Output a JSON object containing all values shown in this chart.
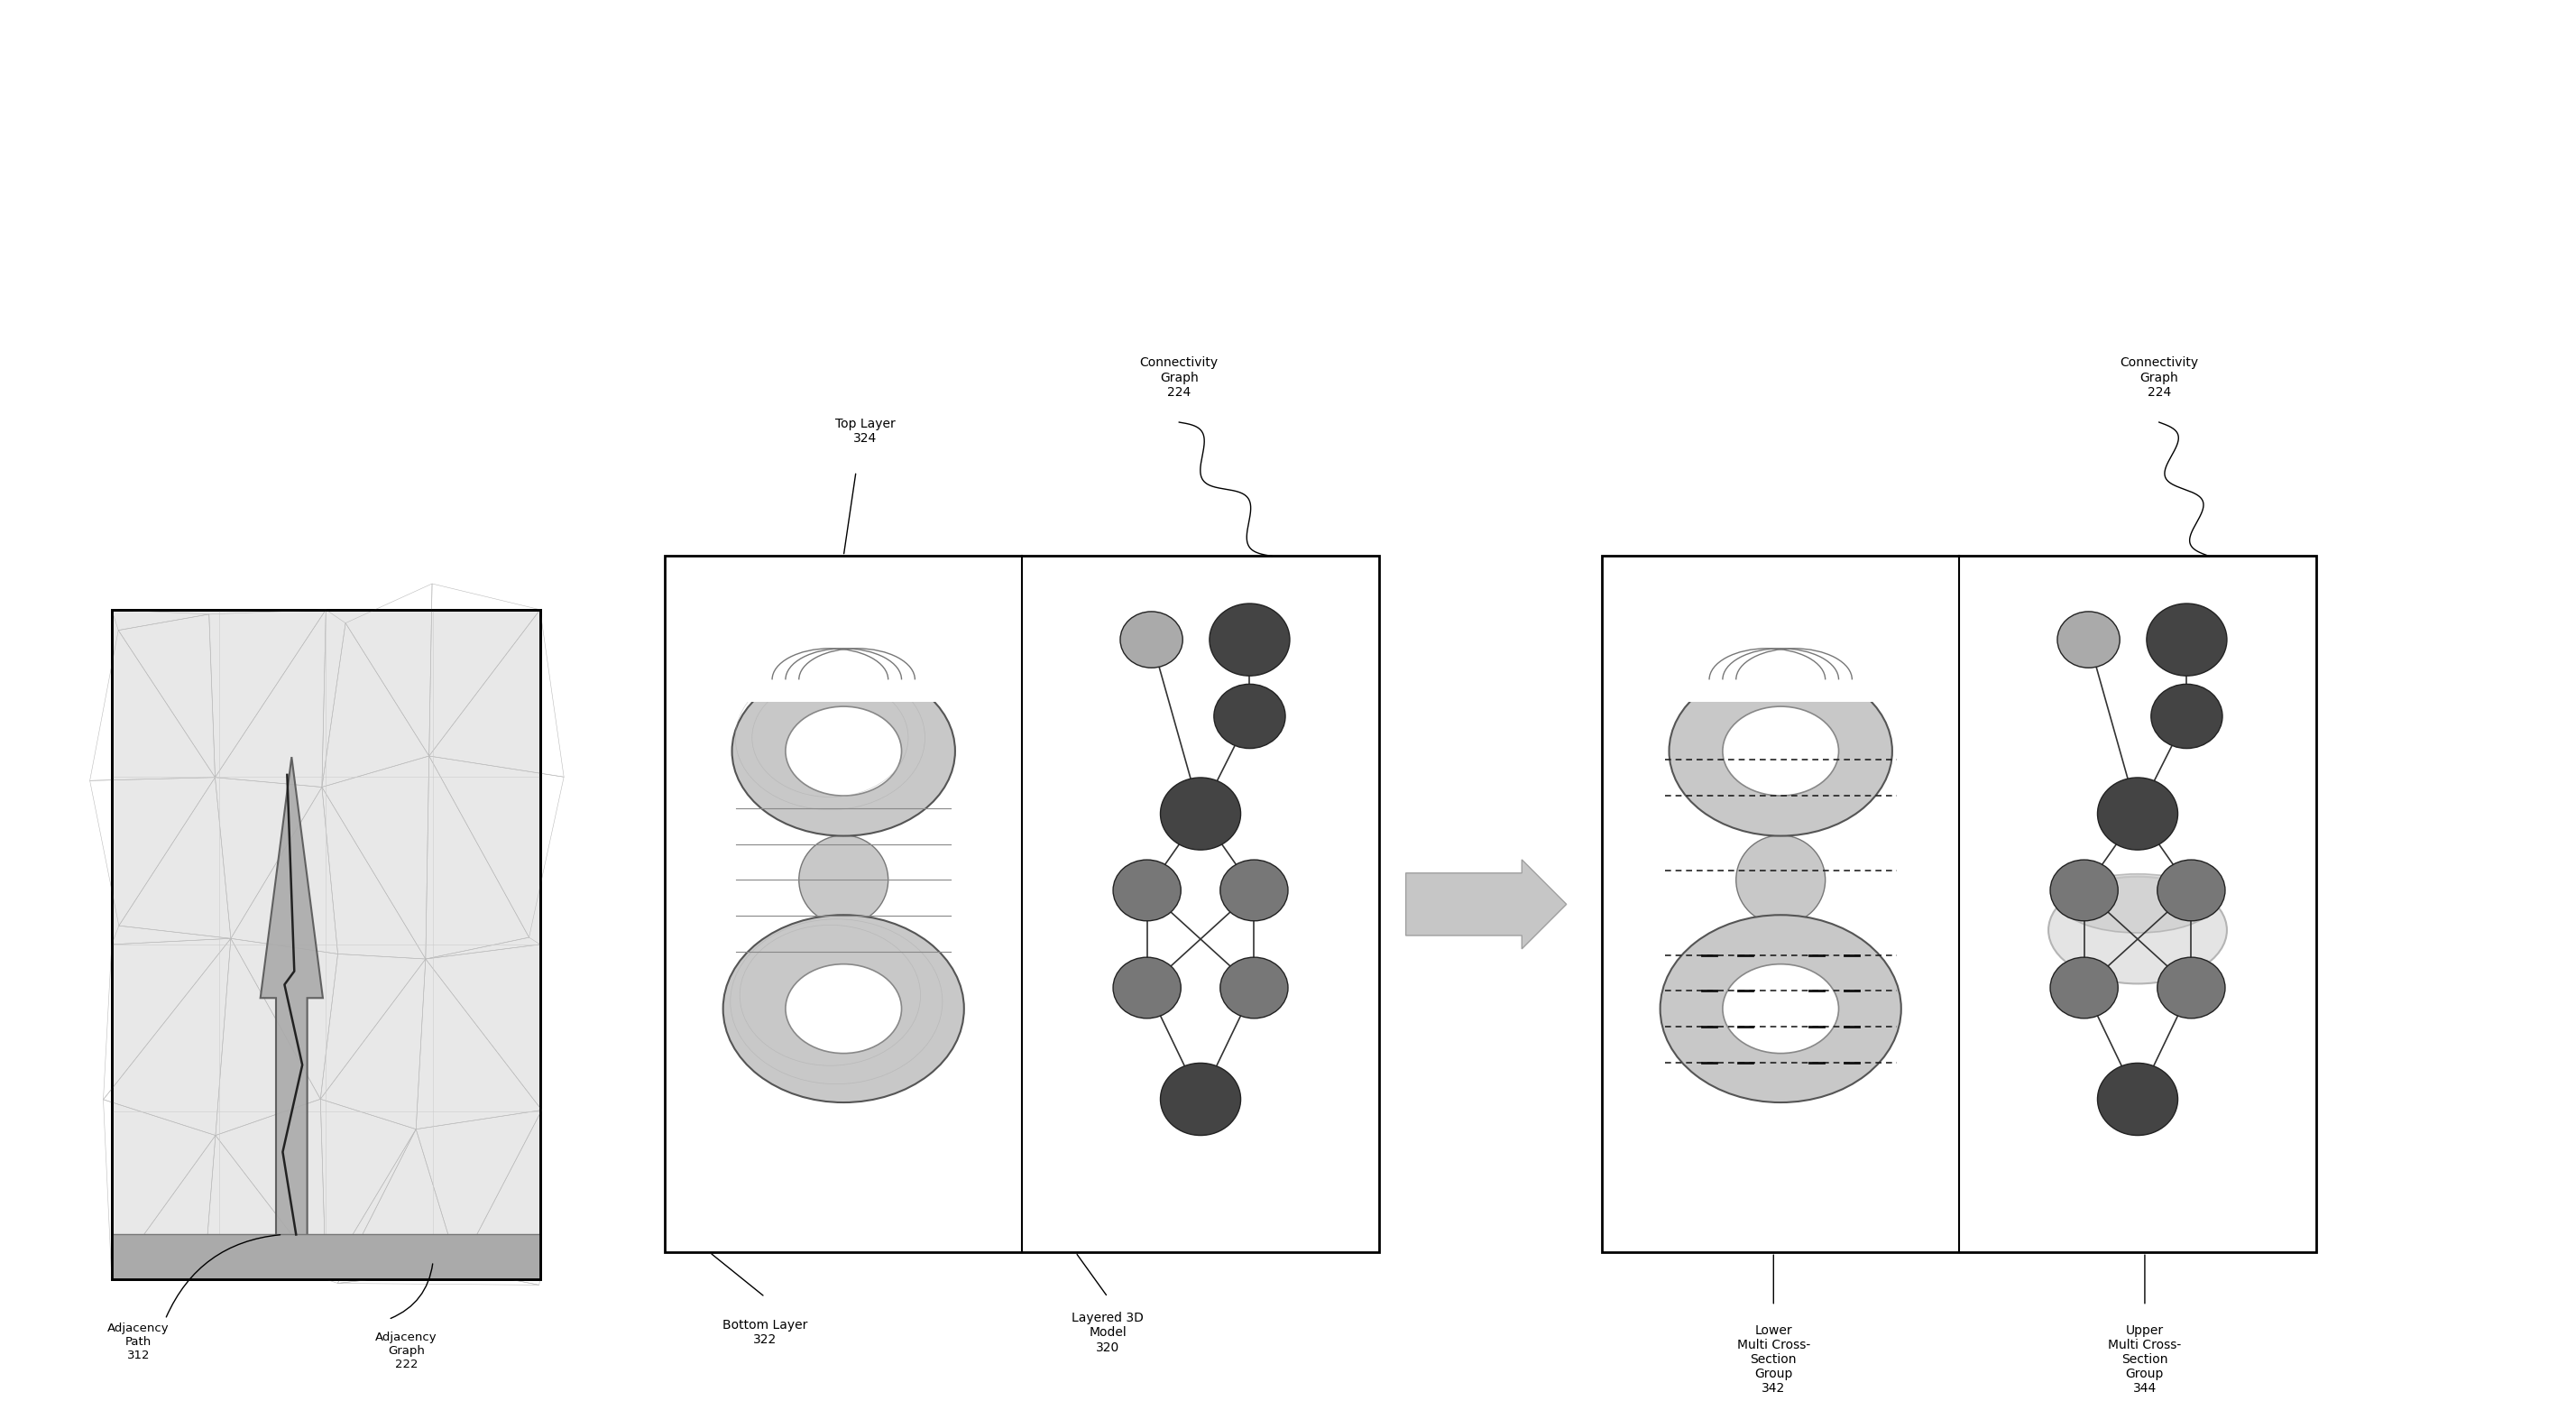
{
  "bg_color": "#ffffff",
  "fig_width": 28.56,
  "fig_height": 15.53,
  "labels": {
    "adjacency_path": "Adjacency\nPath\n312",
    "adjacency_graph": "Adjacency\nGraph\n222",
    "top_layer": "Top Layer\n324",
    "bottom_layer": "Bottom Layer\n322",
    "layered_3d": "Layered 3D\nModel\n320",
    "connectivity_graph_1": "Connectivity\nGraph\n224",
    "connectivity_graph_2": "Connectivity\nGraph\n224",
    "lower_multi": "Lower\nMulti Cross-\nSection\nGroup\n342",
    "upper_multi": "Upper\nMulti Cross-\nSection\nGroup\n344"
  },
  "node_colors": {
    "light": "#aaaaaa",
    "mid": "#777777",
    "dark": "#444444"
  }
}
